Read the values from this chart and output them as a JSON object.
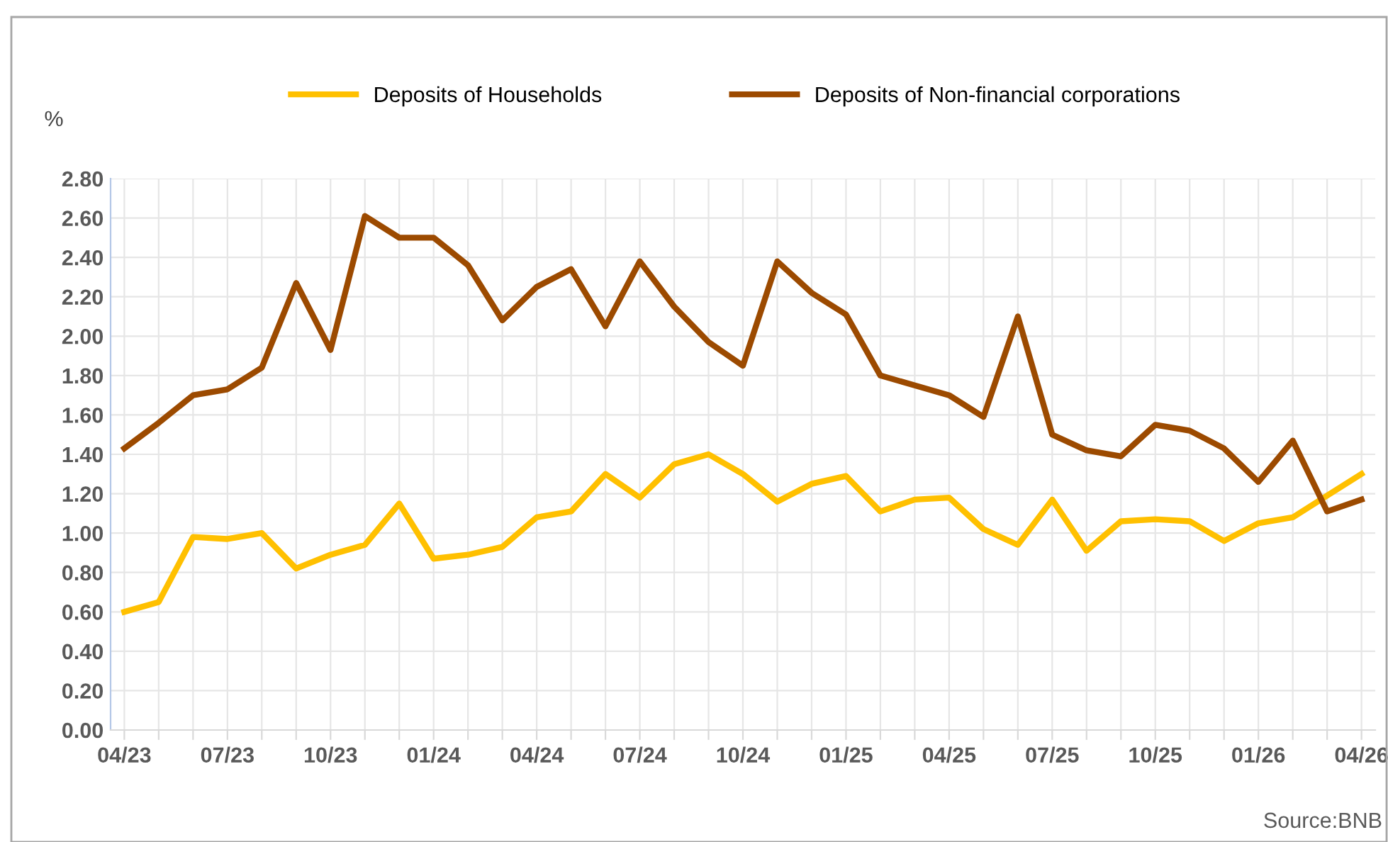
{
  "chart_data": {
    "type": "line",
    "ylabel": "%",
    "categories": [
      "04/23",
      null,
      null,
      "07/23",
      null,
      null,
      "10/23",
      null,
      null,
      "01/24",
      null,
      null,
      "04/24",
      null,
      null,
      "07/24",
      null,
      null,
      "10/24",
      null,
      null,
      "01/25",
      null,
      null,
      "04/25",
      null,
      null,
      "07/25",
      null,
      null,
      "10/25",
      null,
      null,
      "01/26",
      null,
      null,
      "04/26"
    ],
    "series": [
      {
        "name": "Deposits of Households",
        "color": "#ffc000",
        "values": [
          0.6,
          0.65,
          0.98,
          0.97,
          1.0,
          0.82,
          0.89,
          0.94,
          1.15,
          0.87,
          0.89,
          0.93,
          1.08,
          1.11,
          1.3,
          1.18,
          1.35,
          1.4,
          1.3,
          1.16,
          1.25,
          1.29,
          1.11,
          1.17,
          1.18,
          1.02,
          0.94,
          1.17,
          0.91,
          1.06,
          1.07,
          1.06,
          0.96,
          1.05,
          1.08,
          1.19,
          1.3
        ]
      },
      {
        "name": "Deposits of Non-financial corporations",
        "color": "#9c4a00",
        "values": [
          1.43,
          1.56,
          1.7,
          1.73,
          1.84,
          2.27,
          1.93,
          2.61,
          2.5,
          2.5,
          2.36,
          2.08,
          2.25,
          2.34,
          2.05,
          2.38,
          2.15,
          1.97,
          1.85,
          2.38,
          2.22,
          2.11,
          1.8,
          1.75,
          1.7,
          1.59,
          2.1,
          1.5,
          1.42,
          1.39,
          1.55,
          1.52,
          1.43,
          1.26,
          1.47,
          1.11,
          1.17
        ]
      }
    ],
    "ylim": [
      0,
      2.8
    ],
    "yticks": [
      {
        "value": 0,
        "label": "0.00"
      },
      {
        "value": 0.2,
        "label": "0.20"
      },
      {
        "value": 0.4,
        "label": "0.40"
      },
      {
        "value": 0.6,
        "label": "0.60"
      },
      {
        "value": 0.8,
        "label": "0.80"
      },
      {
        "value": 1.0,
        "label": "1.00"
      },
      {
        "value": 1.2,
        "label": "1.20"
      },
      {
        "value": 1.4,
        "label": "1.40"
      },
      {
        "value": 1.6,
        "label": "1.60"
      },
      {
        "value": 1.8,
        "label": "1.80"
      },
      {
        "value": 2.0,
        "label": "2.00"
      },
      {
        "value": 2.2,
        "label": "2.20"
      },
      {
        "value": 2.4,
        "label": "2.40"
      },
      {
        "value": 2.6,
        "label": "2.60"
      },
      {
        "value": 2.8,
        "label": "2.80"
      }
    ],
    "grid": true,
    "legend": "top",
    "marker": "none",
    "line_style": "solid",
    "annotations": [
      "Source:BNB"
    ]
  }
}
